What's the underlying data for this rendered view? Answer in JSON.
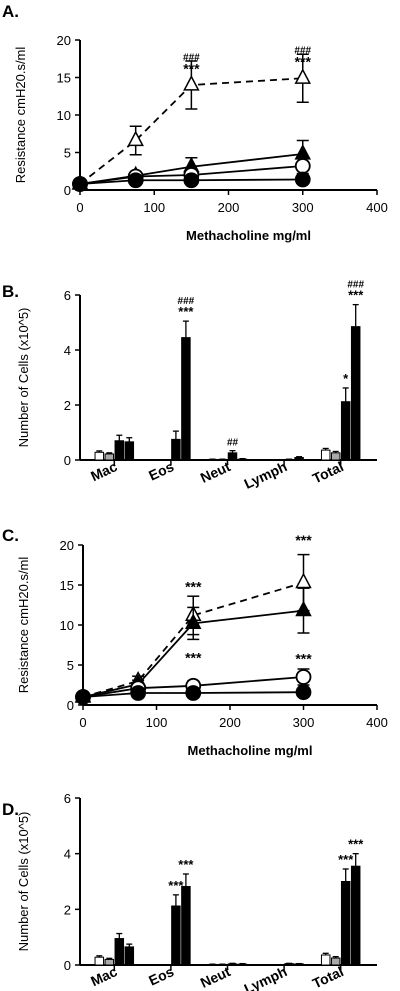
{
  "panels": [
    {
      "letter": "A.",
      "chart_data": {
        "type": "line",
        "xlabel": "Methacholine mg/ml",
        "ylabel": "Resistance cmH20.s/ml",
        "xlim": [
          0,
          400
        ],
        "ylim": [
          0,
          20
        ],
        "xticks": [
          "0",
          "100",
          "200",
          "300",
          "400"
        ],
        "yticks": [
          "0",
          "5",
          "10",
          "15",
          "20"
        ],
        "x": [
          0,
          75,
          150,
          300
        ],
        "series": [
          {
            "marker": "open-triangle",
            "dash": true,
            "values": [
              0.8,
              6.6,
              14.0,
              14.9
            ],
            "err": [
              0.3,
              1.9,
              3.2,
              3.2
            ]
          },
          {
            "marker": "filled-triangle",
            "dash": false,
            "values": [
              0.8,
              1.9,
              3.1,
              4.8
            ],
            "err": [
              0.2,
              0.4,
              1.2,
              1.8
            ]
          },
          {
            "marker": "open-circle",
            "dash": false,
            "values": [
              0.8,
              1.8,
              2.0,
              3.2
            ],
            "err": [
              0.2,
              0.3,
              0.5,
              1.0
            ]
          },
          {
            "marker": "filled-circle",
            "dash": false,
            "values": [
              0.8,
              1.3,
              1.3,
              1.4
            ],
            "err": [
              0.1,
              0.2,
              0.2,
              0.2
            ]
          }
        ],
        "annotations": [
          {
            "x": 150,
            "lines": [
              "###",
              "***"
            ],
            "y": 17.3
          },
          {
            "x": 300,
            "lines": [
              "###",
              "***"
            ],
            "y": 18.2
          }
        ]
      }
    },
    {
      "letter": "B.",
      "chart_data": {
        "type": "bar",
        "ylabel": "Number of Cells (x10^5)",
        "ylim": [
          0,
          6
        ],
        "yticks": [
          "0",
          "2",
          "4",
          "6"
        ],
        "categories": [
          "Mac",
          "Eos",
          "Neut",
          "Lymph",
          "Total"
        ],
        "series": [
          {
            "fill": "white",
            "values": [
              0.28,
              0.0,
              0.02,
              0.0,
              0.36
            ],
            "err": [
              0.05,
              0,
              0.01,
              0,
              0.06
            ]
          },
          {
            "fill": "grey",
            "values": [
              0.22,
              0.0,
              0.02,
              0.0,
              0.26
            ],
            "err": [
              0.04,
              0,
              0.01,
              0,
              0.05
            ]
          },
          {
            "fill": "black",
            "values": [
              0.7,
              0.75,
              0.26,
              0.02,
              2.12
            ],
            "err": [
              0.2,
              0.3,
              0.08,
              0.01,
              0.5
            ]
          },
          {
            "fill": "black",
            "values": [
              0.66,
              4.45,
              0.03,
              0.09,
              4.85
            ],
            "err": [
              0.15,
              0.6,
              0.02,
              0.03,
              0.8
            ]
          }
        ],
        "annotations": [
          {
            "cat": 1,
            "bar": 3,
            "lines": [
              "###",
              "***"
            ]
          },
          {
            "cat": 2,
            "bar": 2,
            "lines": [
              "##"
            ]
          },
          {
            "cat": 4,
            "bar": 2,
            "lines": [
              "*"
            ]
          },
          {
            "cat": 4,
            "bar": 3,
            "lines": [
              "###",
              "***"
            ]
          }
        ]
      }
    },
    {
      "letter": "C.",
      "chart_data": {
        "type": "line",
        "xlabel": "Methacholine mg/ml",
        "ylabel": "Resistance cmH20.s/ml",
        "xlim": [
          0,
          400
        ],
        "ylim": [
          0,
          20
        ],
        "xticks": [
          "0",
          "100",
          "200",
          "300",
          "400"
        ],
        "yticks": [
          "0",
          "5",
          "10",
          "15",
          "20"
        ],
        "x": [
          0,
          75,
          150,
          300
        ],
        "series": [
          {
            "marker": "open-triangle",
            "dash": true,
            "values": [
              1.0,
              3.0,
              11.2,
              15.3
            ],
            "err": [
              0.4,
              0.6,
              2.4,
              3.5
            ]
          },
          {
            "marker": "filled-triangle",
            "dash": false,
            "values": [
              1.0,
              2.6,
              10.2,
              11.8
            ],
            "err": [
              0.4,
              0.5,
              2.0,
              2.8
            ]
          },
          {
            "marker": "open-circle",
            "dash": false,
            "values": [
              1.0,
              2.1,
              2.4,
              3.5
            ],
            "err": [
              0.3,
              0.4,
              0.6,
              1.0
            ]
          },
          {
            "marker": "filled-circle",
            "dash": false,
            "values": [
              1.0,
              1.5,
              1.5,
              1.6
            ],
            "err": [
              0.2,
              0.2,
              0.2,
              0.3
            ]
          }
        ],
        "annotations": [
          {
            "x": 150,
            "lines": [
              "***"
            ],
            "y": 14.2
          },
          {
            "x": 150,
            "lines": [
              "***"
            ],
            "y": 5.3
          },
          {
            "x": 300,
            "lines": [
              "***"
            ],
            "y": 20.0
          },
          {
            "x": 300,
            "lines": [
              "***"
            ],
            "y": 5.2
          }
        ]
      }
    },
    {
      "letter": "D.",
      "chart_data": {
        "type": "bar",
        "ylabel": "Number of Cells (x10^5)",
        "ylim": [
          0,
          6
        ],
        "yticks": [
          "0",
          "2",
          "4",
          "6"
        ],
        "categories": [
          "Mac",
          "Eos",
          "Neut",
          "Lymph",
          "Total"
        ],
        "series": [
          {
            "fill": "white",
            "values": [
              0.28,
              0.0,
              0.02,
              0.0,
              0.36
            ],
            "err": [
              0.05,
              0,
              0.01,
              0,
              0.06
            ]
          },
          {
            "fill": "grey",
            "values": [
              0.2,
              0.0,
              0.02,
              0.0,
              0.25
            ],
            "err": [
              0.04,
              0,
              0.01,
              0,
              0.05
            ]
          },
          {
            "fill": "black",
            "values": [
              0.95,
              2.12,
              0.04,
              0.05,
              3.0
            ],
            "err": [
              0.18,
              0.4,
              0.02,
              0.01,
              0.45
            ]
          },
          {
            "fill": "black",
            "values": [
              0.65,
              2.82,
              0.03,
              0.04,
              3.55
            ],
            "err": [
              0.1,
              0.45,
              0.02,
              0.01,
              0.45
            ]
          }
        ],
        "annotations": [
          {
            "cat": 1,
            "bar": 2,
            "lines": [
              "***"
            ]
          },
          {
            "cat": 1,
            "bar": 3,
            "lines": [
              "***"
            ]
          },
          {
            "cat": 4,
            "bar": 2,
            "lines": [
              "***"
            ]
          },
          {
            "cat": 4,
            "bar": 3,
            "lines": [
              "***"
            ]
          }
        ]
      }
    }
  ],
  "colors": {
    "axis": "#000000",
    "grey_bar": "#aaaaaa",
    "black_bar": "#000000",
    "white_bar": "#ffffff"
  }
}
